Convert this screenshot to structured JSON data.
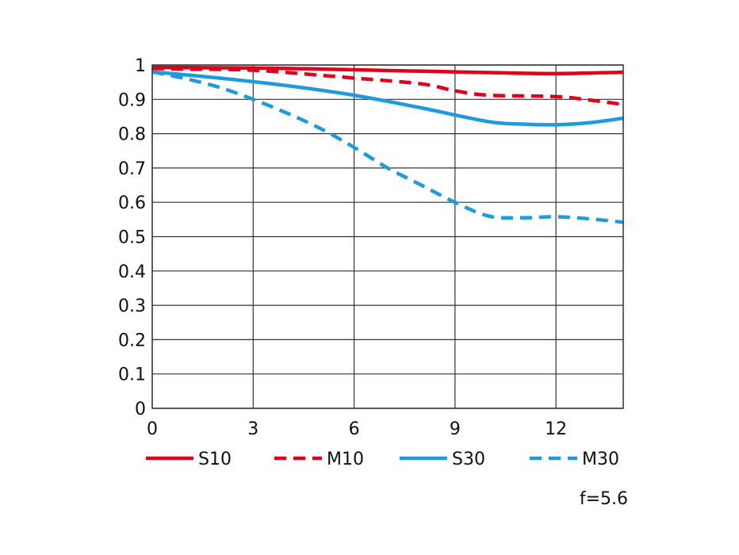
{
  "chart_data": {
    "type": "line",
    "xlim": [
      0,
      14
    ],
    "ylim": [
      0,
      1
    ],
    "x_ticks": [
      0,
      3,
      6,
      9,
      12
    ],
    "y_ticks": [
      0,
      0.1,
      0.2,
      0.3,
      0.4,
      0.5,
      0.6,
      0.7,
      0.8,
      0.9,
      1
    ],
    "x_tick_labels": [
      "0",
      "3",
      "6",
      "9",
      "12"
    ],
    "y_tick_labels": [
      "0",
      "0.1",
      "0.2",
      "0.3",
      "0.4",
      "0.5",
      "0.6",
      "0.7",
      "0.8",
      "0.9",
      "1"
    ],
    "grid": true,
    "legend_position": "bottom",
    "annotation": "f=5.6",
    "series": [
      {
        "name": "S10",
        "color": "#e0001b",
        "dash": "solid",
        "x": [
          0,
          2,
          4,
          6,
          8,
          10,
          12,
          14
        ],
        "y": [
          0.993,
          0.992,
          0.99,
          0.986,
          0.982,
          0.978,
          0.975,
          0.979
        ]
      },
      {
        "name": "M10",
        "color": "#e0001b",
        "dash": "dashed",
        "x": [
          0,
          1,
          3,
          5,
          6,
          8,
          9,
          10,
          12,
          13,
          14
        ],
        "y": [
          0.99,
          0.988,
          0.985,
          0.97,
          0.962,
          0.945,
          0.925,
          0.912,
          0.908,
          0.898,
          0.885
        ]
      },
      {
        "name": "S30",
        "color": "#1e9be0",
        "dash": "solid",
        "x": [
          0,
          2,
          4,
          6,
          8,
          10,
          11,
          12,
          13,
          14
        ],
        "y": [
          0.98,
          0.962,
          0.94,
          0.912,
          0.875,
          0.835,
          0.828,
          0.826,
          0.832,
          0.845
        ]
      },
      {
        "name": "M30",
        "color": "#1e9be0",
        "dash": "dashed",
        "x": [
          0,
          1,
          2,
          3,
          4,
          5,
          6,
          7,
          8,
          9,
          10,
          11,
          12,
          13,
          14
        ],
        "y": [
          0.98,
          0.96,
          0.935,
          0.9,
          0.86,
          0.815,
          0.76,
          0.7,
          0.65,
          0.6,
          0.56,
          0.555,
          0.558,
          0.552,
          0.542
        ]
      }
    ]
  }
}
